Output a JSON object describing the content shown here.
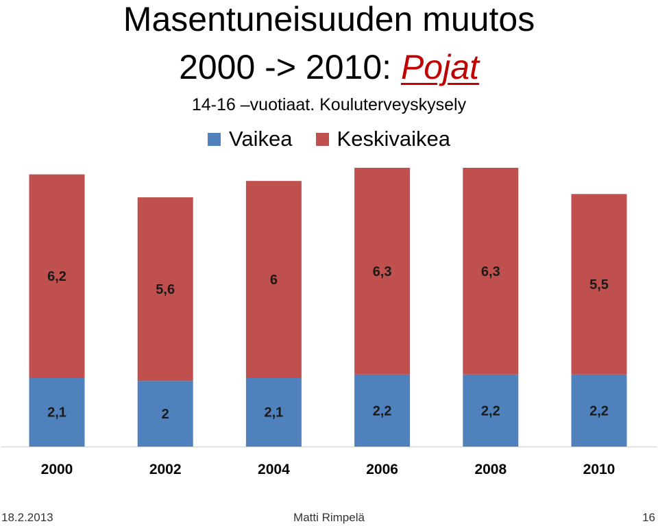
{
  "chart_data": {
    "type": "bar",
    "stacked": true,
    "title_line1": "Masentuneisuuden muutos",
    "title_line2_prefix": "2000 -> 2010: ",
    "title_line2_emphasis": "Pojat",
    "subtitle": "14-16 –vuotiaat. Kouluterveyskysely",
    "categories": [
      "2000",
      "2002",
      "2004",
      "2006",
      "2008",
      "2010"
    ],
    "series": [
      {
        "name": "Vaikea",
        "color": "#4f81bd",
        "values": [
          2.1,
          2,
          2.1,
          2.2,
          2.2,
          2.2
        ],
        "labels": [
          "2,1",
          "2",
          "2,1",
          "2,2",
          "2,2",
          "2,2"
        ]
      },
      {
        "name": "Keskivaikea",
        "color": "#c0504d",
        "values": [
          6.2,
          5.6,
          6,
          6.3,
          6.3,
          5.5
        ],
        "labels": [
          "6,2",
          "5,6",
          "6",
          "6,3",
          "6,3",
          "5,5"
        ]
      }
    ],
    "ylim": [
      0,
      8.5
    ],
    "legend_position": "top-center",
    "grid": false
  },
  "footer": {
    "date": "18.2.2013",
    "author": "Matti Rimpelä",
    "page": "16"
  }
}
